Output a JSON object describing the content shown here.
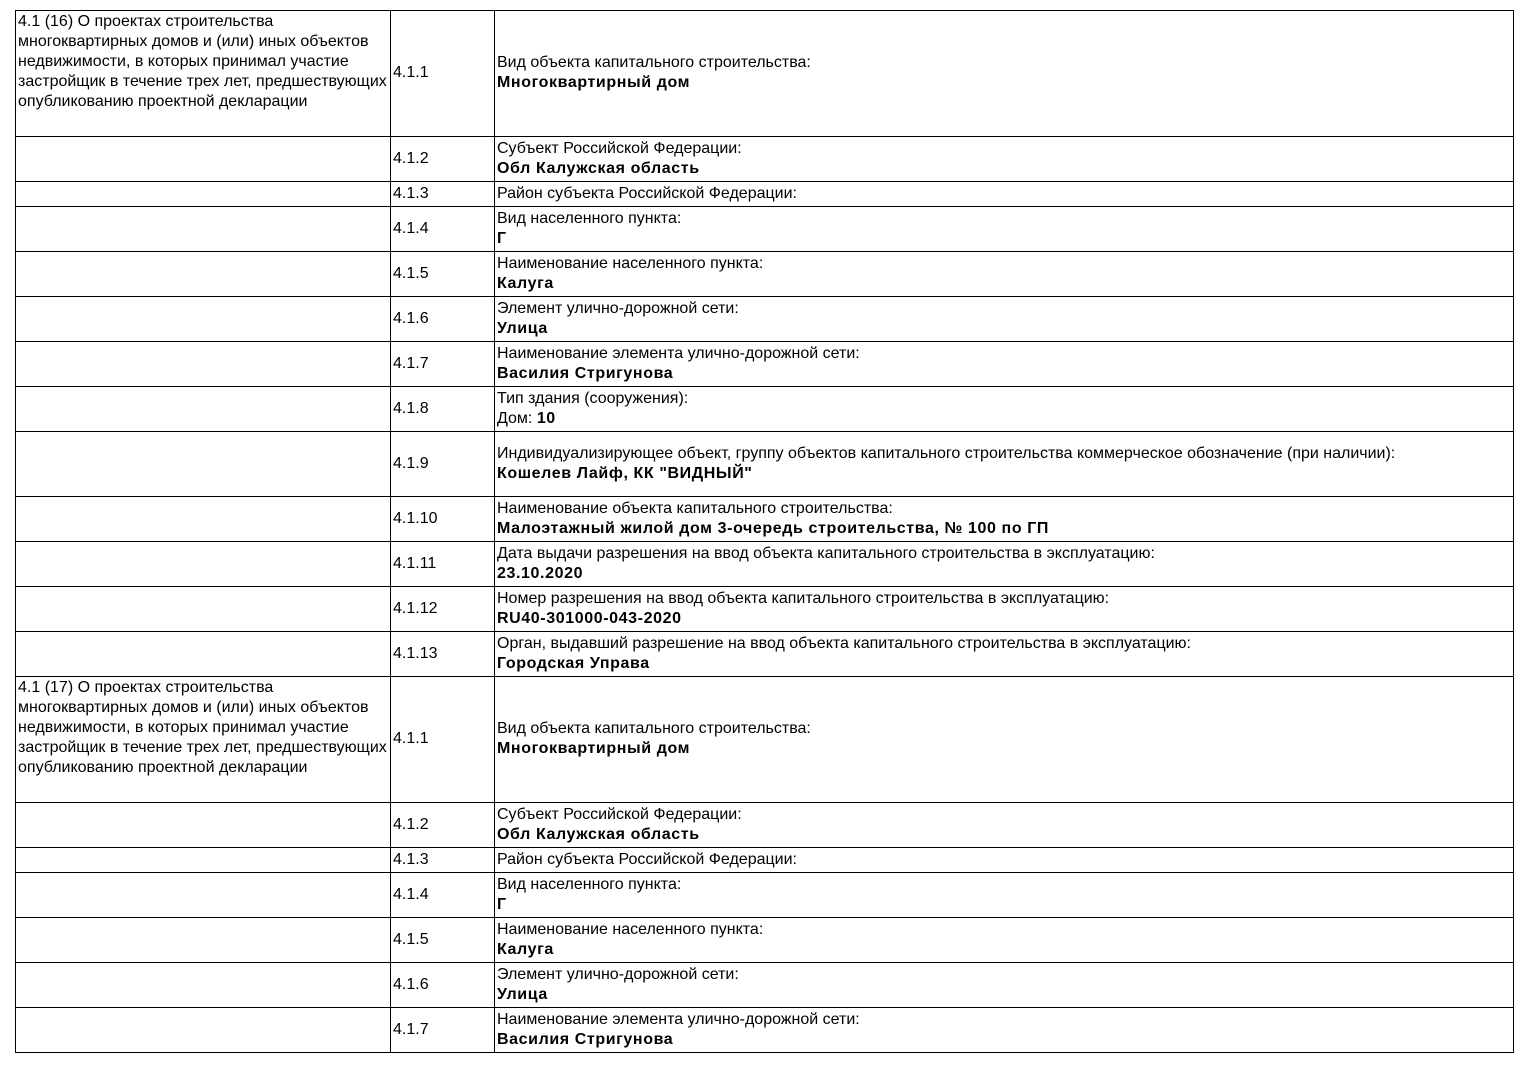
{
  "sections": [
    {
      "title": "4.1 (16) О проектах строительства многоквартирных домов и (или) иных объектов недвижимости, в которых принимал участие застройщик в течение трех лет, предшествующих опубликованию проектной декларации",
      "rows": [
        {
          "num": "4.1.1",
          "label": "Вид объекта капитального строительства:",
          "value": "Многоквартирный дом"
        },
        {
          "num": "4.1.2",
          "label": "Субъект Российской Федерации:",
          "value": "Обл Калужская область"
        },
        {
          "num": "4.1.3",
          "label": "Район субъекта Российской Федерации:",
          "value": ""
        },
        {
          "num": "4.1.4",
          "label": "Вид населенного пункта:",
          "value": "Г"
        },
        {
          "num": "4.1.5",
          "label": "Наименование населенного пункта:",
          "value": "Калуга"
        },
        {
          "num": "4.1.6",
          "label": "Элемент улично-дорожной сети:",
          "value": "Улица"
        },
        {
          "num": "4.1.7",
          "label": "Наименование элемента улично-дорожной сети:",
          "value": "Василия Стригунова"
        },
        {
          "num": "4.1.8",
          "label": "Тип здания (сооружения):",
          "prefix": "Дом: ",
          "value": "10"
        },
        {
          "num": "4.1.9",
          "label": "Индивидуализирующее объект, группу объектов капитального строительства коммерческое обозначение (при наличии):",
          "value": "Кошелев Лайф, КК \"ВИДНЫЙ\""
        },
        {
          "num": "4.1.10",
          "label": "Наименование объекта капитального строительства:",
          "value": "Малоэтажный жилой дом 3-очередь строительства, № 100 по ГП"
        },
        {
          "num": "4.1.11",
          "label": "Дата выдачи разрешения на ввод объекта капитального строительства в эксплуатацию:",
          "value": "23.10.2020"
        },
        {
          "num": "4.1.12",
          "label": "Номер разрешения на ввод объекта капитального строительства в эксплуатацию:",
          "value": "RU40-301000-043-2020"
        },
        {
          "num": "4.1.13",
          "label": "Орган, выдавший разрешение на ввод объекта капитального строительства в эксплуатацию:",
          "value": "Городская Управа"
        }
      ]
    },
    {
      "title": "4.1 (17) О проектах строительства многоквартирных домов и (или) иных объектов недвижимости, в которых принимал участие застройщик в течение трех лет, предшествующих опубликованию проектной декларации",
      "rows": [
        {
          "num": "4.1.1",
          "label": "Вид объекта капитального строительства:",
          "value": "Многоквартирный дом"
        },
        {
          "num": "4.1.2",
          "label": "Субъект Российской Федерации:",
          "value": "Обл Калужская область"
        },
        {
          "num": "4.1.3",
          "label": "Район субъекта Российской Федерации:",
          "value": ""
        },
        {
          "num": "4.1.4",
          "label": "Вид населенного пункта:",
          "value": "Г"
        },
        {
          "num": "4.1.5",
          "label": "Наименование населенного пункта:",
          "value": "Калуга"
        },
        {
          "num": "4.1.6",
          "label": "Элемент улично-дорожной сети:",
          "value": "Улица"
        },
        {
          "num": "4.1.7",
          "label": "Наименование элемента улично-дорожной сети:",
          "value": "Василия Стригунова"
        }
      ]
    }
  ]
}
